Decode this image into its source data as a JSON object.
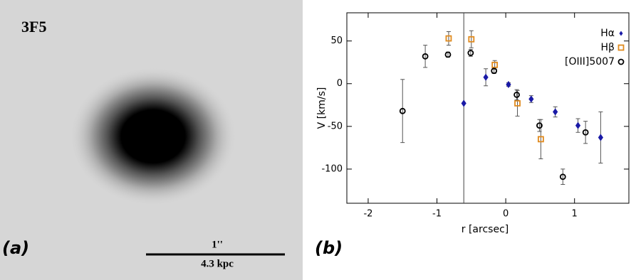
{
  "panel_a": {
    "name": "3F5",
    "label": "(a)",
    "scale_top": "1''",
    "scale_bottom": "4.3 kpc"
  },
  "chart_data": {
    "type": "scatter",
    "panel_label": "(b)",
    "x_label": "r [arcsec]",
    "y_label": "V [km/s]",
    "xlim": [
      -2.31,
      1.79
    ],
    "ylim": [
      -140,
      83
    ],
    "xticks": [
      -2,
      -1,
      0,
      1
    ],
    "yticks": [
      -100,
      -50,
      0,
      50
    ],
    "vline_x": -0.61,
    "legend": "upper right",
    "series": [
      {
        "name": "Hα",
        "color": "#1a1aa6",
        "marker": "diamond",
        "x": [
          -0.61,
          -0.29,
          0.04,
          0.37,
          0.72,
          1.05,
          1.38
        ],
        "values": [
          -23,
          7.5,
          -1,
          -18,
          -33,
          -49,
          -63
        ],
        "errors": [
          null,
          10,
          2,
          4,
          6,
          8,
          30
        ]
      },
      {
        "name": "Hβ",
        "color": "#e08a1e",
        "marker": "square",
        "x": [
          -0.83,
          -0.5,
          -0.16,
          0.17,
          0.51
        ],
        "values": [
          53,
          52,
          22,
          -23,
          -65
        ],
        "errors": [
          8,
          10,
          5,
          15,
          23
        ]
      },
      {
        "name": "[OIII]5007",
        "color": "#000000",
        "marker": "circle",
        "x": [
          -1.5,
          -1.17,
          -0.84,
          -0.51,
          -0.17,
          0.16,
          0.49,
          0.83,
          1.16
        ],
        "values": [
          -32,
          32,
          34,
          36,
          15,
          -13,
          -49,
          -109,
          -57
        ],
        "errors": [
          37,
          13,
          3,
          4,
          3,
          6,
          7,
          9,
          13
        ]
      }
    ]
  }
}
